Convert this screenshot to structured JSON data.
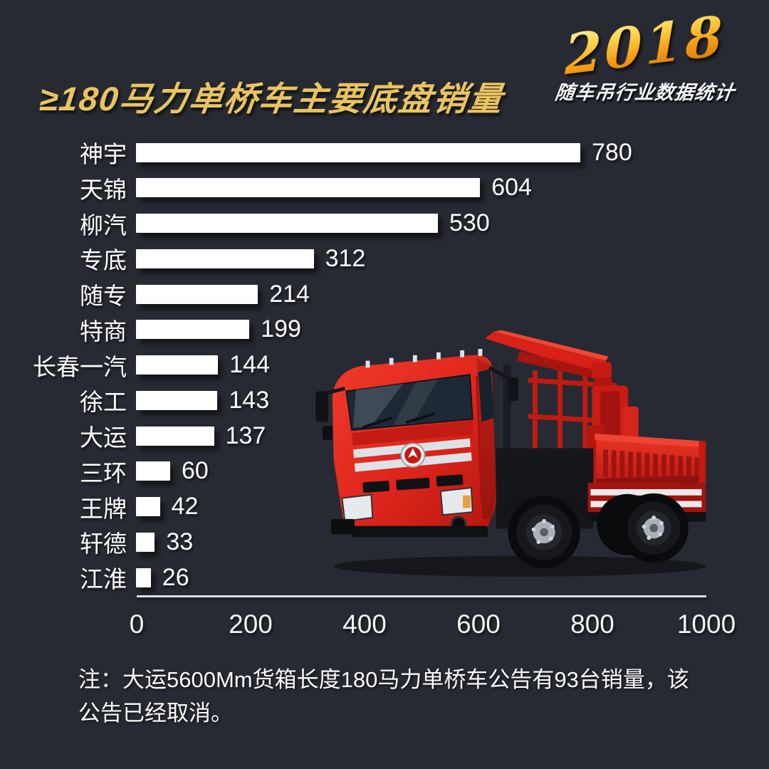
{
  "header": {
    "title": "≥180马力单桥车主要底盘销量",
    "badge_year": "2018",
    "badge_subtitle": "随车吊行业数据统计"
  },
  "note": "注：大运5600Mm货箱长度180马力单桥车公告有93台销量，该公告已经取消。",
  "colors": {
    "background": "#272a32",
    "title_gold": "#e9c45f",
    "bar_fill": "#ffffff",
    "label_text": "#fdfdfd",
    "axis_line": "#dcdee1",
    "truck_red": "#d8251c"
  },
  "chart_data": {
    "type": "bar",
    "orientation": "horizontal",
    "title": "≥180马力单桥车主要底盘销量",
    "categories": [
      "神宇",
      "天锦",
      "柳汽",
      "专底",
      "随专",
      "特商",
      "长春一汽",
      "徐工",
      "大运",
      "三环",
      "王牌",
      "轩德",
      "江淮"
    ],
    "values": [
      780,
      604,
      530,
      312,
      214,
      199,
      144,
      143,
      137,
      60,
      42,
      33,
      26
    ],
    "xlabel": "",
    "ylabel": "",
    "xlim": [
      0,
      1000
    ],
    "x_ticks": [
      0,
      200,
      400,
      600,
      800,
      1000
    ],
    "grid": false,
    "legend": null,
    "value_labels_shown": true,
    "bar_color": "#ffffff"
  }
}
